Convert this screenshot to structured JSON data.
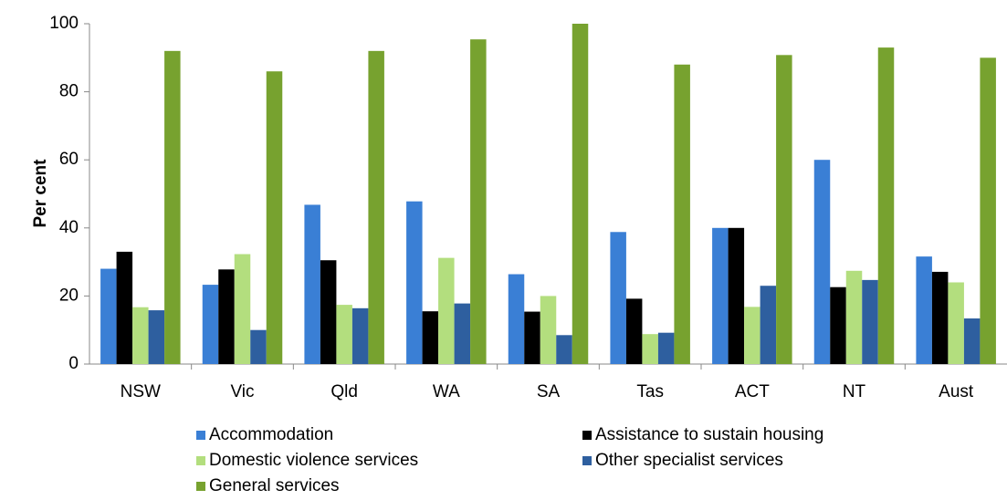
{
  "chart_data": {
    "type": "bar",
    "ylabel": "Per cent",
    "categories": [
      "NSW",
      "Vic",
      "Qld",
      "WA",
      "SA",
      "Tas",
      "ACT",
      "NT",
      "Aust"
    ],
    "series": [
      {
        "name": "Accommodation",
        "color": "#3a7fd5",
        "values": [
          28,
          23.3,
          46.8,
          47.8,
          26.4,
          38.8,
          40,
          60,
          31.6
        ]
      },
      {
        "name": "Assistance to sustain housing",
        "color": "#000000",
        "values": [
          33,
          27.8,
          30.5,
          15.5,
          15.4,
          19.2,
          40,
          22.6,
          27.1
        ]
      },
      {
        "name": "Domestic violence services",
        "color": "#b3de7e",
        "values": [
          16.7,
          32.3,
          17.4,
          31.2,
          20,
          8.8,
          16.8,
          27.4,
          24
        ]
      },
      {
        "name": "Other specialist services",
        "color": "#2e5f9f",
        "values": [
          15.8,
          10,
          16.4,
          17.8,
          8.5,
          9.2,
          23,
          24.7,
          13.4
        ]
      },
      {
        "name": "General services",
        "color": "#77a22f",
        "values": [
          92,
          86,
          92,
          95.4,
          100,
          88,
          90.8,
          93,
          90
        ]
      }
    ],
    "ylim": [
      0,
      100
    ],
    "yticks": [
      0,
      20,
      40,
      60,
      80,
      100
    ],
    "grid": false,
    "legend": "bottom"
  }
}
